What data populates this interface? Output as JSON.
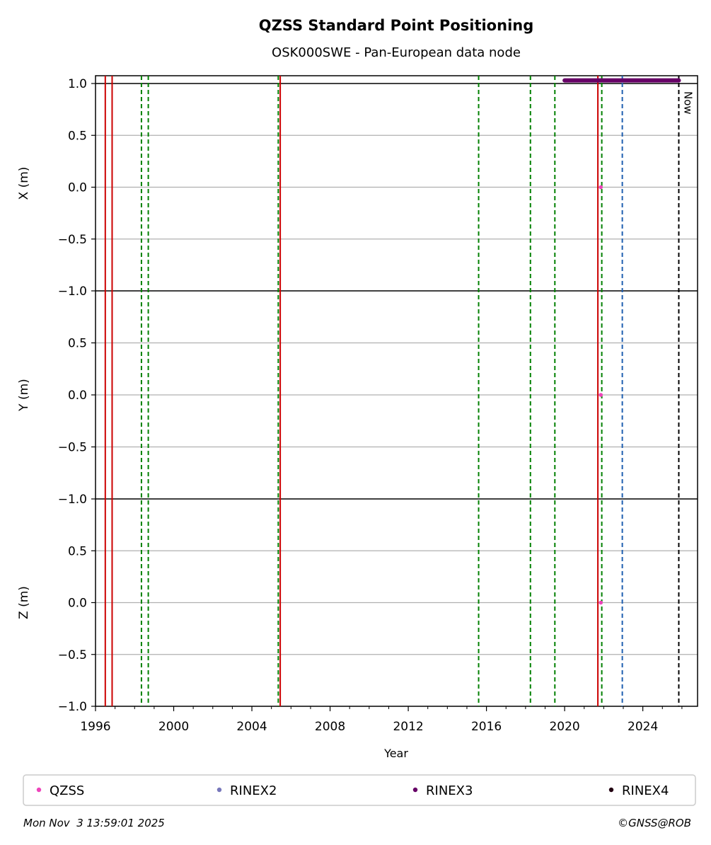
{
  "chart_data": {
    "type": "scatter",
    "title": "QZSS Standard Point Positioning",
    "subtitle": "OSK000SWE - Pan-European data node",
    "xlabel": "Year",
    "xlim": [
      1996.0,
      2026.8
    ],
    "x_ticks": [
      {
        "value": 1996,
        "label": "1996"
      },
      {
        "value": 2000,
        "label": "2000"
      },
      {
        "value": 2004,
        "label": "2004"
      },
      {
        "value": 2008,
        "label": "2008"
      },
      {
        "value": 2012,
        "label": "2012"
      },
      {
        "value": 2016,
        "label": "2016"
      },
      {
        "value": 2020,
        "label": "2020"
      },
      {
        "value": 2024,
        "label": "2024"
      }
    ],
    "panels": [
      {
        "ylabel": "X (m)",
        "ylim": [
          -1.0,
          1.0
        ],
        "y_ticks": [
          {
            "value": 1.0,
            "label": "1.0"
          },
          {
            "value": 0.5,
            "label": "0.5"
          },
          {
            "value": 0.0,
            "label": "0.0"
          },
          {
            "value": -0.5,
            "label": "−0.5"
          },
          {
            "value": -1.0,
            "label": "−1.0"
          }
        ],
        "qzss_points": [
          {
            "x": 2021.85,
            "y": 0.0
          }
        ]
      },
      {
        "ylabel": "Y (m)",
        "ylim": [
          -1.0,
          1.0
        ],
        "y_ticks": [
          {
            "value": 0.5,
            "label": "0.5"
          },
          {
            "value": 0.0,
            "label": "0.0"
          },
          {
            "value": -0.5,
            "label": "−0.5"
          },
          {
            "value": -1.0,
            "label": "−1.0"
          }
        ],
        "qzss_points": [
          {
            "x": 2021.85,
            "y": 0.0
          }
        ]
      },
      {
        "ylabel": "Z (m)",
        "ylim": [
          -1.0,
          1.0
        ],
        "y_ticks": [
          {
            "value": 0.5,
            "label": "0.5"
          },
          {
            "value": 0.0,
            "label": "0.0"
          },
          {
            "value": -0.5,
            "label": "−0.5"
          },
          {
            "value": -1.0,
            "label": "−1.0"
          }
        ],
        "qzss_points": [
          {
            "x": 2021.85,
            "y": 0.0
          }
        ]
      }
    ],
    "event_lines": [
      {
        "x": 1996.5,
        "color": "#cc0000",
        "style": "solid"
      },
      {
        "x": 1996.85,
        "color": "#cc0000",
        "style": "solid"
      },
      {
        "x": 1998.35,
        "color": "#008000",
        "style": "dashed"
      },
      {
        "x": 1998.7,
        "color": "#008000",
        "style": "dashed"
      },
      {
        "x": 2005.35,
        "color": "#008000",
        "style": "dashed"
      },
      {
        "x": 2005.45,
        "color": "#cc0000",
        "style": "solid"
      },
      {
        "x": 2015.6,
        "color": "#008000",
        "style": "dashed"
      },
      {
        "x": 2018.25,
        "color": "#008000",
        "style": "dashed"
      },
      {
        "x": 2019.5,
        "color": "#008000",
        "style": "dashed"
      },
      {
        "x": 2021.7,
        "color": "#cc0000",
        "style": "solid"
      },
      {
        "x": 2021.9,
        "color": "#008000",
        "style": "dashed"
      },
      {
        "x": 2022.95,
        "color": "#1f5fb0",
        "style": "dashed"
      },
      {
        "x": 2025.84,
        "color": "#000000",
        "style": "dashed"
      }
    ],
    "now_label": "Now",
    "now_x": 2025.84,
    "rinex3_availability": {
      "x_start": 2020.0,
      "x_end": 2025.84,
      "y": 1.03
    },
    "series": [
      {
        "name": "QZSS",
        "color": "#ee44bb"
      },
      {
        "name": "RINEX2",
        "color": "#7777bb"
      },
      {
        "name": "RINEX3",
        "color": "#660066"
      },
      {
        "name": "RINEX4",
        "color": "#220011"
      }
    ],
    "legend_position": "bottom"
  },
  "footer": {
    "timestamp": "Mon Nov  3 13:59:01 2025",
    "credit": "©GNSS@ROB"
  }
}
